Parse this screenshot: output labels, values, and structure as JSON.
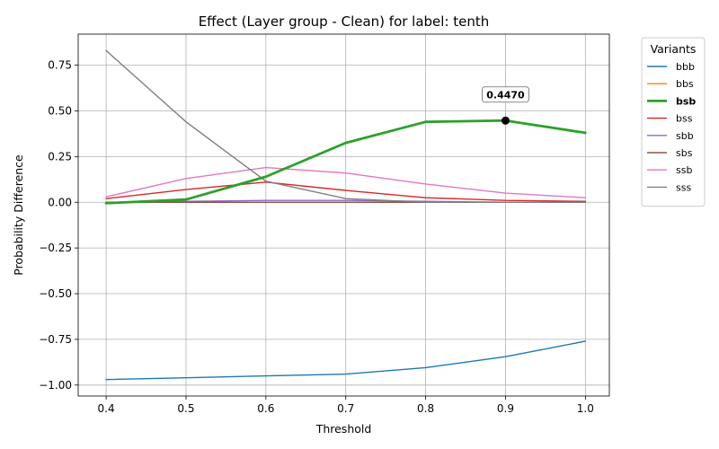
{
  "chart_data": {
    "type": "line",
    "title": "Effect (Layer group - Clean) for label: tenth",
    "xlabel": "Threshold",
    "ylabel": "Probability Difference",
    "xlim": [
      0.365,
      1.03
    ],
    "ylim": [
      -1.06,
      0.92
    ],
    "xticks": [
      0.4,
      0.5,
      0.6,
      0.7,
      0.8,
      0.9,
      1.0
    ],
    "xtick_labels": [
      "0.4",
      "0.5",
      "0.6",
      "0.7",
      "0.8",
      "0.9",
      "1.0"
    ],
    "yticks": [
      0.75,
      0.5,
      0.25,
      0.0,
      -0.25,
      -0.5,
      -0.75,
      -1.0
    ],
    "ytick_labels": [
      "0.75",
      "0.50",
      "0.25",
      "0.00",
      "−0.25",
      "−0.50",
      "−0.75",
      "−1.00"
    ],
    "grid": true,
    "legend": {
      "title": "Variants",
      "placement": "outside-right"
    },
    "x": [
      0.4,
      0.5,
      0.6,
      0.7,
      0.8,
      0.9,
      1.0
    ],
    "series": [
      {
        "name": "bbb",
        "color": "#1f77b4",
        "highlight": false,
        "values": [
          -0.97,
          -0.96,
          -0.95,
          -0.94,
          -0.905,
          -0.845,
          -0.76
        ]
      },
      {
        "name": "bbs",
        "color": "#ff7f0e",
        "highlight": false,
        "values": [
          0.0,
          0.0,
          0.0,
          0.0,
          0.0,
          0.0,
          0.0
        ]
      },
      {
        "name": "bsb",
        "color": "#2ca02c",
        "highlight": true,
        "values": [
          -0.005,
          0.015,
          0.14,
          0.325,
          0.44,
          0.447,
          0.38
        ]
      },
      {
        "name": "bss",
        "color": "#d62728",
        "highlight": false,
        "values": [
          0.02,
          0.07,
          0.11,
          0.065,
          0.025,
          0.01,
          0.005
        ]
      },
      {
        "name": "sbb",
        "color": "#9467bd",
        "highlight": false,
        "values": [
          0.0,
          0.005,
          0.01,
          0.01,
          0.005,
          0.0,
          0.0
        ]
      },
      {
        "name": "sbs",
        "color": "#8c564b",
        "highlight": false,
        "values": [
          0.0,
          0.0,
          0.0,
          0.0,
          0.0,
          0.0,
          0.0
        ]
      },
      {
        "name": "ssb",
        "color": "#e377c2",
        "highlight": false,
        "values": [
          0.03,
          0.13,
          0.19,
          0.16,
          0.1,
          0.05,
          0.025
        ]
      },
      {
        "name": "sss",
        "color": "#7f7f7f",
        "highlight": false,
        "values": [
          0.83,
          0.44,
          0.115,
          0.02,
          0.0,
          0.0,
          0.0
        ]
      }
    ],
    "annotation": {
      "x": 0.9,
      "y": 0.447,
      "text": "0.4470"
    }
  }
}
